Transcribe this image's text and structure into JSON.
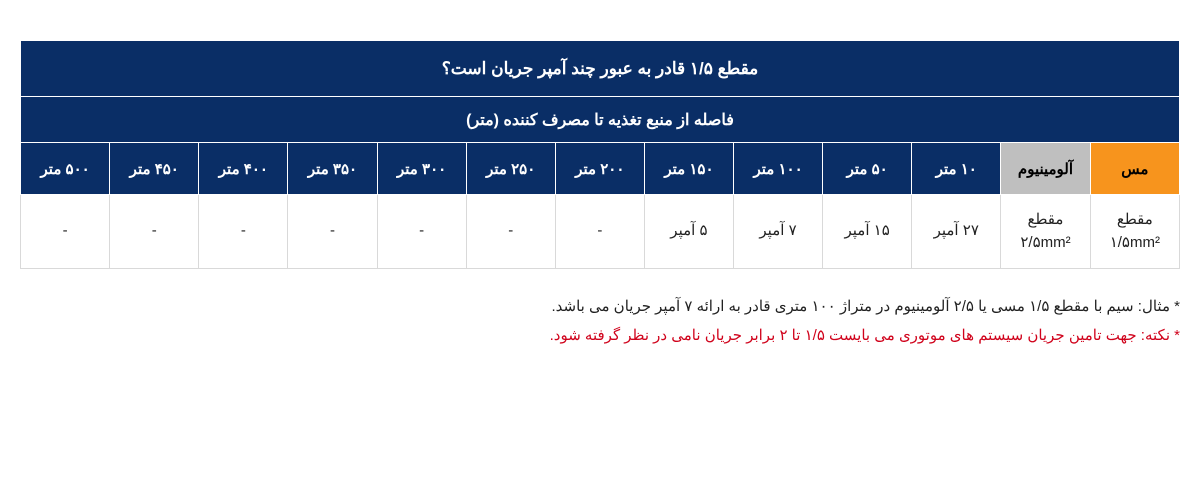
{
  "table": {
    "title": "مقطع ۱/۵ قادر به عبور چند آمپر جریان است؟",
    "subtitle": "فاصله از منبع تغذیه تا مصرف کننده  (متر)",
    "headers": {
      "mes": "مس",
      "alu": "آلومینیوم",
      "d10": "۱۰ متر",
      "d50": "۵۰ متر",
      "d100": "۱۰۰ متر",
      "d150": "۱۵۰ متر",
      "d200": "۲۰۰ متر",
      "d250": "۲۵۰ متر",
      "d300": "۳۰۰ متر",
      "d350": "۳۵۰ متر",
      "d400": "۴۰۰ متر",
      "d450": "۴۵۰ متر",
      "d500": "۵۰۰ متر"
    },
    "row": {
      "mes": "مقطع\n۱/۵mm²",
      "alu": "مقطع\n۲/۵mm²",
      "d10": "۲۷ آمپر",
      "d50": "۱۵ آمپر",
      "d100": "۷ آمپر",
      "d150": "۵ آمپر",
      "d200": "-",
      "d250": "-",
      "d300": "-",
      "d350": "-",
      "d400": "-",
      "d450": "-",
      "d500": "-"
    }
  },
  "notes": {
    "line1": "* مثال: سیم با مقطع ۱/۵ مسی یا ۲/۵ آلومینیوم در متراژ ۱۰۰ متری قادر به ارائه ۷ آمپر جریان می باشد.",
    "line2": "* نکته: جهت تامین جریان سیستم های موتوری می بایست ۱/۵ تا ۲ برابر جریان نامی در نظر گرفته شود."
  },
  "colors": {
    "header_bg": "#0a2e66",
    "mes_bg": "#f7941d",
    "alu_bg": "#bfbfbf",
    "border": "#d9d9d9",
    "note_red": "#d0021b"
  }
}
